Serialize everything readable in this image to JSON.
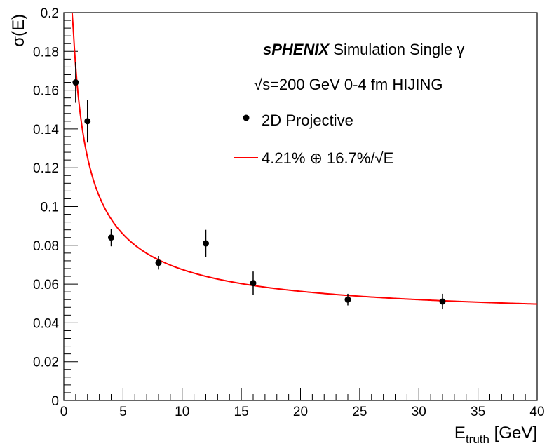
{
  "chart_data": {
    "type": "scatter",
    "xlabel": {
      "main": "E",
      "sub": "truth",
      "unit": "[GeV]"
    },
    "ylabel": "σ(E)",
    "xlim": [
      0,
      40
    ],
    "ylim": [
      0,
      0.2
    ],
    "x_ticks": [
      0,
      5,
      10,
      15,
      20,
      25,
      30,
      35,
      40
    ],
    "y_ticks": [
      0,
      0.02,
      0.04,
      0.06,
      0.08,
      0.1,
      0.12,
      0.14,
      0.16,
      0.18,
      0.2
    ],
    "x_tick_labels": [
      "0",
      "5",
      "10",
      "15",
      "20",
      "25",
      "30",
      "35",
      "40"
    ],
    "y_tick_labels": [
      "0",
      "0.02",
      "0.04",
      "0.06",
      "0.08",
      "0.1",
      "0.12",
      "0.14",
      "0.16",
      "0.18",
      "0.2"
    ],
    "grid": false,
    "legend_position": "top-right",
    "annotations": [
      {
        "bold": "sPHENIX",
        "text": " Simulation Single γ"
      },
      {
        "text": "√s=200 GeV 0-4 fm HIJING"
      }
    ],
    "series": [
      {
        "name": "2D Projective",
        "kind": "points-with-errors",
        "color": "#000000",
        "points": [
          {
            "x": 1,
            "y": 0.164,
            "err": 0.0105
          },
          {
            "x": 2,
            "y": 0.144,
            "err": 0.011
          },
          {
            "x": 4,
            "y": 0.084,
            "err": 0.0045
          },
          {
            "x": 8,
            "y": 0.071,
            "err": 0.0035
          },
          {
            "x": 12,
            "y": 0.081,
            "err": 0.007
          },
          {
            "x": 16,
            "y": 0.0605,
            "err": 0.006
          },
          {
            "x": 24,
            "y": 0.052,
            "err": 0.003
          },
          {
            "x": 32,
            "y": 0.051,
            "err": 0.004
          }
        ]
      },
      {
        "name": "4.21% ⊕ 16.7%/√E",
        "kind": "fit-curve",
        "color": "#ff0000",
        "constant_term": 0.0421,
        "stochastic_term": 0.167,
        "x_range": [
          0.7,
          40
        ]
      }
    ]
  }
}
